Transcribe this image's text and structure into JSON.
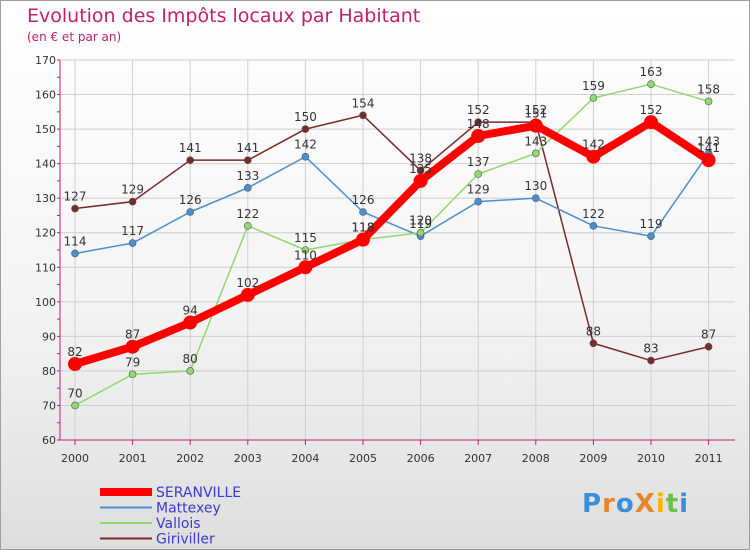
{
  "chart_data": {
    "type": "line",
    "title": "Evolution des Impôts locaux par Habitant",
    "subtitle": "(en € et par an)",
    "x": [
      "2000",
      "2001",
      "2002",
      "2003",
      "2004",
      "2005",
      "2006",
      "2007",
      "2008",
      "2009",
      "2010",
      "2011"
    ],
    "ylim": [
      60,
      170
    ],
    "yticks": [
      60,
      70,
      80,
      90,
      100,
      110,
      120,
      130,
      140,
      150,
      160,
      170
    ],
    "grid": true,
    "legend_position": "bottom-left",
    "series": [
      {
        "name": "SERANVILLE",
        "color": "#ff0000",
        "values": [
          82,
          87,
          94,
          102,
          110,
          118,
          135,
          148,
          151,
          142,
          152,
          141
        ]
      },
      {
        "name": "Mattexey",
        "color": "#4a8fd0",
        "values": [
          114,
          117,
          126,
          133,
          142,
          126,
          119,
          129,
          130,
          122,
          119,
          143
        ]
      },
      {
        "name": "Vallois",
        "color": "#90d870",
        "values": [
          70,
          79,
          80,
          122,
          115,
          118,
          120,
          137,
          143,
          159,
          163,
          158
        ]
      },
      {
        "name": "Giriviller",
        "color": "#7a2a2a",
        "values": [
          127,
          129,
          141,
          141,
          150,
          154,
          138,
          152,
          152,
          88,
          83,
          87
        ]
      }
    ]
  },
  "logo": {
    "text": "ProXiti",
    "letters": [
      "P",
      "r",
      "o",
      "X",
      "i",
      "t",
      "i"
    ],
    "colors": [
      "#3b8ed8",
      "#e8862c",
      "#3b8ed8",
      "#e8862c",
      "#ffb400",
      "#6cc04a",
      "#3b8ed8"
    ]
  }
}
